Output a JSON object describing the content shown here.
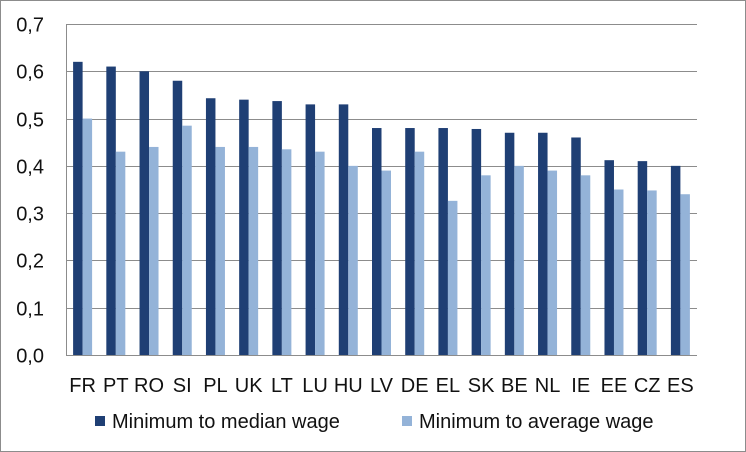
{
  "chart_data": {
    "type": "bar",
    "categories": [
      "FR",
      "PT",
      "RO",
      "SI",
      "PL",
      "UK",
      "LT",
      "LU",
      "HU",
      "LV",
      "DE",
      "EL",
      "SK",
      "BE",
      "NL",
      "IE",
      "EE",
      "CZ",
      "ES"
    ],
    "series": [
      {
        "name": "Minimum to median wage",
        "color": "#1f3f74",
        "values": [
          0.62,
          0.61,
          0.6,
          0.58,
          0.543,
          0.54,
          0.537,
          0.53,
          0.53,
          0.48,
          0.48,
          0.48,
          0.478,
          0.47,
          0.47,
          0.46,
          0.412,
          0.41,
          0.4
        ]
      },
      {
        "name": "Minimum to average wage",
        "color": "#94b3d8",
        "values": [
          0.5,
          0.43,
          0.44,
          0.485,
          0.44,
          0.44,
          0.435,
          0.43,
          0.4,
          0.39,
          0.43,
          0.326,
          0.38,
          0.4,
          0.39,
          0.38,
          0.35,
          0.348,
          0.34
        ]
      }
    ],
    "ylim": [
      0,
      0.7
    ],
    "yticks": [
      "0,0",
      "0,1",
      "0,2",
      "0,3",
      "0,4",
      "0,5",
      "0,6",
      "0,7"
    ],
    "grid": true,
    "legend_position": "bottom"
  }
}
